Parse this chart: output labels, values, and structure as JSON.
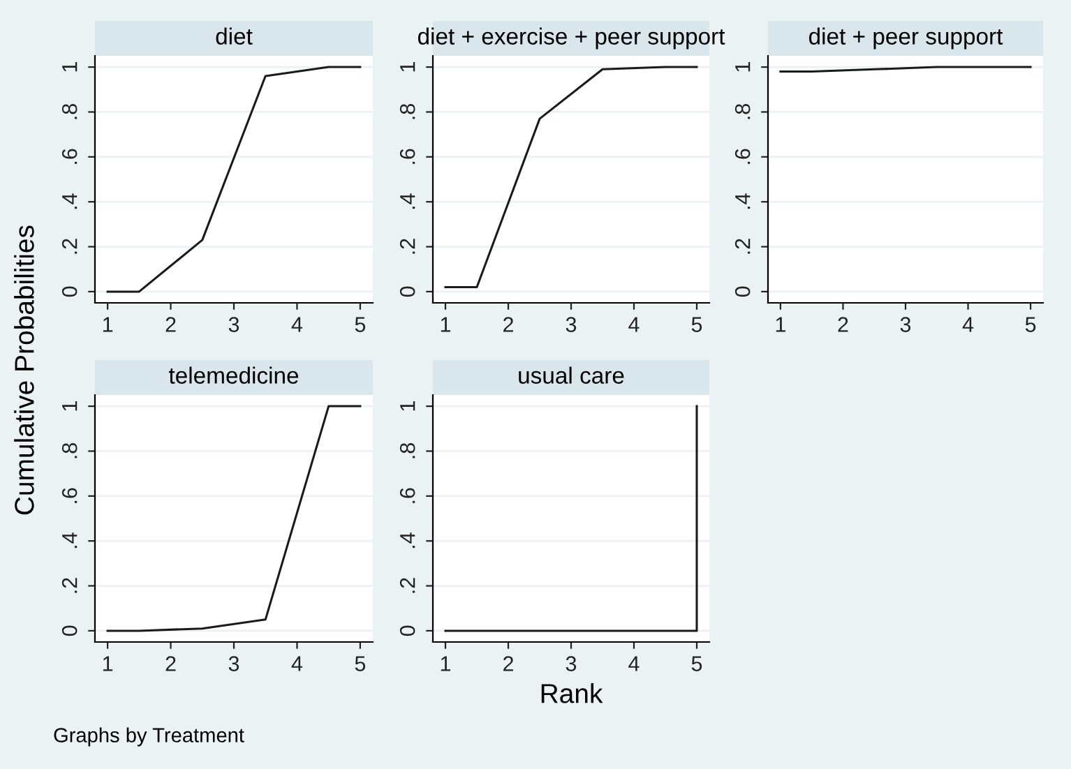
{
  "chart_data": [
    {
      "type": "line",
      "title": "diet",
      "x": [
        1,
        1.5,
        2.5,
        3.5,
        4.5,
        5
      ],
      "series": [
        {
          "color": "#1a1a1a",
          "values": [
            0,
            0,
            0.23,
            0.96,
            1,
            1
          ]
        }
      ],
      "xlim": [
        0.8,
        5.2
      ],
      "ylim": [
        -0.05,
        1.05
      ],
      "xticks": [
        1,
        2,
        3,
        4,
        5
      ],
      "yticks": [
        0,
        {
          "value": 0.2,
          "label": ".2"
        },
        {
          "value": 0.4,
          "label": ".4"
        },
        {
          "value": 0.6,
          "label": ".6"
        },
        {
          "value": 0.8,
          "label": ".8"
        },
        1
      ],
      "grid": "y"
    },
    {
      "type": "line",
      "title": "diet + exercise + peer support",
      "x": [
        1,
        1.5,
        2.5,
        3.5,
        4.5,
        5
      ],
      "series": [
        {
          "color": "#1a1a1a",
          "values": [
            0.02,
            0.02,
            0.77,
            0.99,
            1,
            1
          ]
        }
      ],
      "xlim": [
        0.8,
        5.2
      ],
      "ylim": [
        -0.05,
        1.05
      ],
      "xticks": [
        1,
        2,
        3,
        4,
        5
      ],
      "yticks": [
        0,
        {
          "value": 0.2,
          "label": ".2"
        },
        {
          "value": 0.4,
          "label": ".4"
        },
        {
          "value": 0.6,
          "label": ".6"
        },
        {
          "value": 0.8,
          "label": ".8"
        },
        1
      ],
      "grid": "y"
    },
    {
      "type": "line",
      "title": "diet + peer support",
      "x": [
        1,
        1.5,
        2.5,
        3.5,
        4.5,
        5
      ],
      "series": [
        {
          "color": "#1a1a1a",
          "values": [
            0.98,
            0.98,
            0.99,
            1,
            1,
            1
          ]
        }
      ],
      "xlim": [
        0.8,
        5.2
      ],
      "ylim": [
        -0.05,
        1.05
      ],
      "xticks": [
        1,
        2,
        3,
        4,
        5
      ],
      "yticks": [
        0,
        {
          "value": 0.2,
          "label": ".2"
        },
        {
          "value": 0.4,
          "label": ".4"
        },
        {
          "value": 0.6,
          "label": ".6"
        },
        {
          "value": 0.8,
          "label": ".8"
        },
        1
      ],
      "grid": "y"
    },
    {
      "type": "line",
      "title": "telemedicine",
      "ylabel": "Cumulative Probabilities",
      "annotations": [
        "Graphs by Treatment"
      ],
      "x": [
        1,
        1.5,
        2.5,
        3.5,
        4.5,
        5
      ],
      "series": [
        {
          "color": "#1a1a1a",
          "values": [
            0,
            0,
            0.01,
            0.05,
            1,
            1
          ]
        }
      ],
      "xlim": [
        0.8,
        5.2
      ],
      "ylim": [
        -0.05,
        1.05
      ],
      "xticks": [
        1,
        2,
        3,
        4,
        5
      ],
      "yticks": [
        0,
        {
          "value": 0.2,
          "label": ".2"
        },
        {
          "value": 0.4,
          "label": ".4"
        },
        {
          "value": 0.6,
          "label": ".6"
        },
        {
          "value": 0.8,
          "label": ".8"
        },
        1
      ],
      "grid": "y"
    },
    {
      "type": "line",
      "title": "usual care",
      "xlabel": "Rank",
      "x": [
        1,
        1.5,
        2.5,
        3.5,
        4.5,
        5,
        5
      ],
      "series": [
        {
          "color": "#1a1a1a",
          "values": [
            0,
            0,
            0,
            0,
            0,
            0,
            1
          ]
        }
      ],
      "xlim": [
        0.8,
        5.2
      ],
      "ylim": [
        -0.05,
        1.05
      ],
      "xticks": [
        1,
        2,
        3,
        4,
        5
      ],
      "yticks": [
        0,
        {
          "value": 0.2,
          "label": ".2"
        },
        {
          "value": 0.4,
          "label": ".4"
        },
        {
          "value": 0.6,
          "label": ".6"
        },
        {
          "value": 0.8,
          "label": ".8"
        },
        1
      ],
      "grid": "y"
    }
  ]
}
